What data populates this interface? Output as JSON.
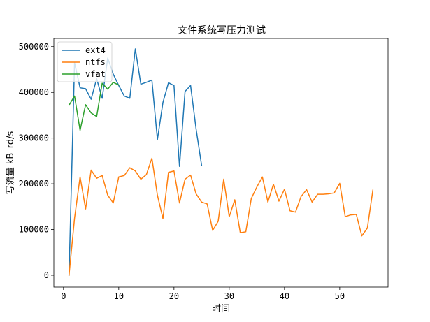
{
  "chart_data": {
    "type": "line",
    "title": "文件系统写压力测试",
    "xlabel": "时间",
    "ylabel": "写流量 kB_rd/s",
    "xlim": [
      -1.75,
      58.75
    ],
    "ylim": [
      -26000,
      518000
    ],
    "xticks": [
      0,
      10,
      20,
      30,
      40,
      50
    ],
    "yticks": [
      0,
      100000,
      200000,
      300000,
      400000,
      500000
    ],
    "ytick_labels": [
      "0",
      "100000",
      "200000",
      "300000",
      "400000",
      "500000"
    ],
    "grid": false,
    "legend_position": "top-left",
    "series": [
      {
        "name": "ext4",
        "color": "#1f77b4",
        "linewidth": 1.5,
        "x": [
          1,
          2,
          3,
          4,
          5,
          6,
          7,
          8,
          9,
          10,
          11,
          12,
          13,
          14,
          15,
          16,
          17,
          18,
          19,
          20,
          21,
          22,
          23,
          24,
          25
        ],
        "y": [
          0,
          465000,
          410000,
          408000,
          385000,
          430000,
          387000,
          475000,
          440000,
          415000,
          392000,
          387000,
          495000,
          418000,
          422000,
          427000,
          297000,
          378000,
          421000,
          415000,
          238000,
          402000,
          415000,
          320000,
          240000
        ]
      },
      {
        "name": "ntfs",
        "color": "#ff7f0e",
        "linewidth": 1.5,
        "x": [
          1,
          2,
          3,
          4,
          5,
          6,
          7,
          8,
          9,
          10,
          11,
          12,
          13,
          14,
          15,
          16,
          17,
          18,
          19,
          20,
          21,
          22,
          23,
          24,
          25,
          26,
          27,
          28,
          29,
          30,
          31,
          32,
          33,
          34,
          35,
          36,
          37,
          38,
          39,
          40,
          41,
          42,
          43,
          44,
          45,
          46,
          47,
          48,
          49,
          50,
          51,
          52,
          53,
          54,
          55,
          56
        ],
        "y": [
          0,
          125000,
          215000,
          145000,
          230000,
          212000,
          218000,
          175000,
          158000,
          215000,
          218000,
          235000,
          228000,
          210000,
          220000,
          256000,
          175000,
          124000,
          225000,
          228000,
          158000,
          210000,
          219000,
          178000,
          160000,
          156000,
          98000,
          118000,
          210000,
          128000,
          165000,
          93000,
          95000,
          168000,
          193000,
          215000,
          160000,
          199000,
          162000,
          188000,
          141000,
          138000,
          172000,
          187000,
          160000,
          177000,
          177000,
          178000,
          180000,
          201000,
          128000,
          132000,
          133000,
          86000,
          103000,
          186000
        ]
      },
      {
        "name": "vfat",
        "color": "#2ca02c",
        "linewidth": 1.5,
        "x": [
          1,
          2,
          3,
          4,
          5,
          6,
          7,
          8,
          9,
          10
        ],
        "y": [
          372000,
          392000,
          317000,
          373000,
          355000,
          347000,
          420000,
          407000,
          422000,
          416000
        ]
      }
    ]
  }
}
